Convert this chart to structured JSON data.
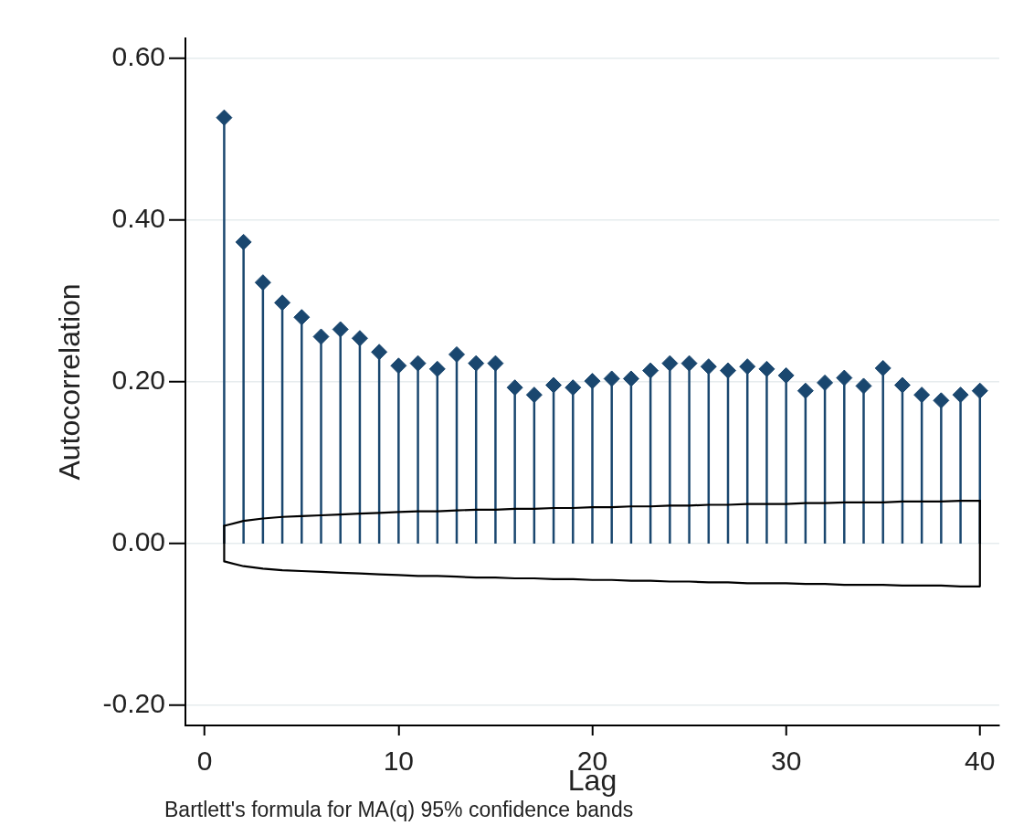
{
  "chart_data": {
    "type": "lollipop",
    "xlabel": "Lag",
    "ylabel": "Autocorrelation",
    "annotations": [
      "Bartlett's formula for MA(q) 95% confidence bands"
    ],
    "x": [
      1,
      2,
      3,
      4,
      5,
      6,
      7,
      8,
      9,
      10,
      11,
      12,
      13,
      14,
      15,
      16,
      17,
      18,
      19,
      20,
      21,
      22,
      23,
      24,
      25,
      26,
      27,
      28,
      29,
      30,
      31,
      32,
      33,
      34,
      35,
      36,
      37,
      38,
      39,
      40
    ],
    "series": [
      {
        "type": "line",
        "color": "#000000",
        "marker": "none",
        "values": [
          0.022,
          0.028,
          0.031,
          0.033,
          0.034,
          0.035,
          0.036,
          0.037,
          0.038,
          0.039,
          0.04,
          0.04,
          0.041,
          0.042,
          0.042,
          0.043,
          0.043,
          0.044,
          0.044,
          0.045,
          0.045,
          0.046,
          0.046,
          0.047,
          0.047,
          0.048,
          0.048,
          0.049,
          0.049,
          0.049,
          0.05,
          0.05,
          0.051,
          0.051,
          0.051,
          0.052,
          0.052,
          0.052,
          0.053,
          0.053
        ]
      },
      {
        "type": "line",
        "color": "#000000",
        "marker": "none",
        "x": [
          1,
          1,
          2,
          3,
          4,
          5,
          6,
          7,
          8,
          9,
          10,
          11,
          12,
          13,
          14,
          15,
          16,
          17,
          18,
          19,
          20,
          21,
          22,
          23,
          24,
          25,
          26,
          27,
          28,
          29,
          30,
          31,
          32,
          33,
          34,
          35,
          36,
          37,
          38,
          39,
          40,
          40
        ],
        "values": [
          0.022,
          -0.022,
          -0.028,
          -0.031,
          -0.033,
          -0.034,
          -0.035,
          -0.036,
          -0.037,
          -0.038,
          -0.039,
          -0.04,
          -0.04,
          -0.041,
          -0.042,
          -0.042,
          -0.043,
          -0.043,
          -0.044,
          -0.044,
          -0.045,
          -0.045,
          -0.046,
          -0.046,
          -0.047,
          -0.047,
          -0.048,
          -0.048,
          -0.049,
          -0.049,
          -0.049,
          -0.05,
          -0.05,
          -0.051,
          -0.051,
          -0.051,
          -0.052,
          -0.052,
          -0.052,
          -0.053,
          -0.053,
          0.053
        ]
      },
      {
        "color": "#1a476f",
        "values": [
          0.527,
          0.373,
          0.323,
          0.298,
          0.28,
          0.256,
          0.265,
          0.254,
          0.237,
          0.22,
          0.223,
          0.216,
          0.234,
          0.223,
          0.223,
          0.193,
          0.184,
          0.196,
          0.193,
          0.201,
          0.204,
          0.204,
          0.214,
          0.223,
          0.223,
          0.219,
          0.214,
          0.219,
          0.216,
          0.208,
          0.189,
          0.199,
          0.205,
          0.195,
          0.217,
          0.196,
          0.184,
          0.177,
          0.184,
          0.189
        ]
      }
    ],
    "xlim": [
      -1,
      41
    ],
    "xticks": [
      0,
      10,
      20,
      30,
      40
    ],
    "ylim": [
      -0.225,
      0.625
    ],
    "yticks": [
      {
        "value": -0.2,
        "label": "-0.20"
      },
      {
        "value": 0,
        "label": "0.00"
      },
      {
        "value": 0.2,
        "label": "0.20"
      },
      {
        "value": 0.4,
        "label": "0.40"
      },
      {
        "value": 0.6,
        "label": "0.60"
      }
    ],
    "grid": "y",
    "marker": "diamond"
  }
}
